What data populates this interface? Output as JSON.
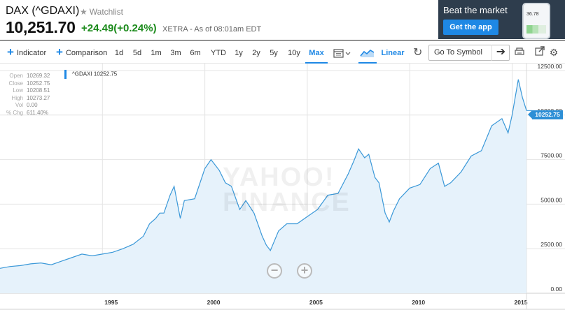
{
  "header": {
    "ticker": "DAX (^GDAXI)",
    "watchlist_label": "Watchlist",
    "price": "10,251.70",
    "change": "+24.49(+0.24%)",
    "exchange_time": "XETRA - As of 08:01am EDT",
    "change_color": "#1a8a1a"
  },
  "ad": {
    "title": "Beat the market",
    "button": "Get the app",
    "phone_value": "36.78"
  },
  "toolbar": {
    "indicator": "Indicator",
    "comparison": "Comparison",
    "ranges": [
      "1d",
      "5d",
      "1m",
      "3m",
      "6m",
      "YTD",
      "1y",
      "2y",
      "5y",
      "10y",
      "Max"
    ],
    "active_range": "Max",
    "scale": "Linear",
    "goto_placeholder": "Go To Symbol",
    "accent": "#1e88e5"
  },
  "ohlc": {
    "open_label": "Open",
    "open": "10269.32",
    "close_label": "Close",
    "close": "10252.75",
    "low_label": "Low",
    "low": "10208.51",
    "high_label": "High",
    "high": "10273.27",
    "vol_label": "Vol",
    "vol": "0.00",
    "chg_label": "% Chg",
    "chg": "611.40%"
  },
  "legend": {
    "series": "^GDAXI 10252.75"
  },
  "last_price_tag": "10252.75",
  "watermark": {
    "line1": "YAHOO!",
    "line2": "FINANCE"
  },
  "chart_data": {
    "type": "area",
    "series": [
      {
        "name": "^GDAXI",
        "x": [
          1990.0,
          1990.5,
          1991.0,
          1991.5,
          1992.0,
          1992.5,
          1993.0,
          1993.5,
          1994.0,
          1994.5,
          1995.0,
          1995.5,
          1996.0,
          1996.5,
          1997.0,
          1997.3,
          1997.6,
          1997.8,
          1998.0,
          1998.3,
          1998.5,
          1998.8,
          1999.0,
          1999.5,
          2000.0,
          2000.3,
          2000.7,
          2001.0,
          2001.3,
          2001.7,
          2002.0,
          2002.4,
          2002.8,
          2003.0,
          2003.2,
          2003.6,
          2004.0,
          2004.5,
          2005.0,
          2005.5,
          2006.0,
          2006.5,
          2007.0,
          2007.3,
          2007.5,
          2007.8,
          2008.0,
          2008.3,
          2008.5,
          2008.8,
          2009.0,
          2009.2,
          2009.5,
          2010.0,
          2010.5,
          2011.0,
          2011.4,
          2011.7,
          2012.0,
          2012.5,
          2013.0,
          2013.5,
          2014.0,
          2014.5,
          2014.8,
          2015.0,
          2015.3,
          2015.5,
          2015.7
        ],
        "y": [
          1400,
          1500,
          1550,
          1650,
          1700,
          1600,
          1800,
          2000,
          2200,
          2100,
          2200,
          2300,
          2500,
          2750,
          3200,
          3900,
          4200,
          4500,
          4500,
          5500,
          6000,
          4200,
          5200,
          5300,
          7000,
          7500,
          6900,
          6200,
          6000,
          4700,
          5200,
          4500,
          3200,
          2700,
          2400,
          3500,
          3900,
          3900,
          4300,
          4700,
          5500,
          5600,
          6700,
          7500,
          8100,
          7600,
          7800,
          6500,
          6200,
          4500,
          4000,
          4600,
          5300,
          5900,
          6100,
          7000,
          7300,
          6000,
          6200,
          6800,
          7700,
          8000,
          9400,
          9800,
          9000,
          10000,
          12000,
          11000,
          10252.75
        ]
      }
    ],
    "xlim": [
      1990.0,
      2015.7
    ],
    "ylim": [
      0,
      12500
    ],
    "x_ticks": [
      1995,
      2000,
      2005,
      2010,
      2015
    ],
    "y_ticks": [
      0,
      2500,
      5000,
      7500,
      10000,
      12500
    ],
    "x_tick_labels": [
      "1995",
      "2000",
      "2005",
      "2010",
      "2015"
    ],
    "y_tick_labels": [
      "0.00",
      "2500.00",
      "5000.00",
      "7500.00",
      "10000.00",
      "12500.00"
    ],
    "line_color": "#3a98d8",
    "fill_color": "#e6f2fb",
    "grid": true
  }
}
